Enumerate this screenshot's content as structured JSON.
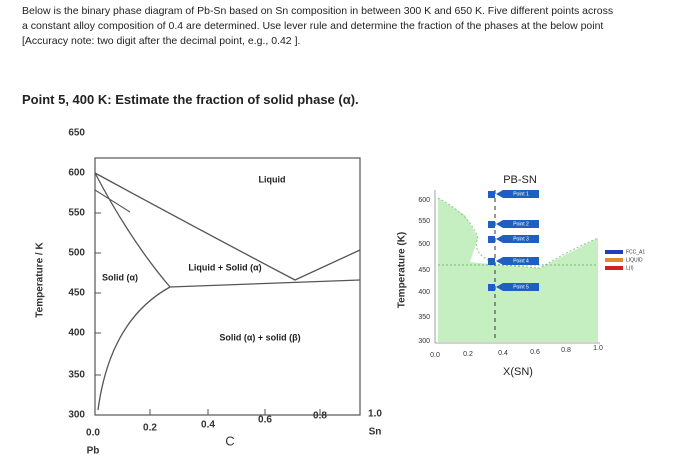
{
  "question": {
    "lines": [
      "Below is the binary phase diagram of Pb-Sn based on Sn composition in between 300 K and 650 K. Five different points across",
      "a constant alloy composition of 0.4 are determined. Use lever rule and determine the fraction of the phases at the below point",
      "[Accuracy note: two digit after the decimal point, e.g., 0.42 ]."
    ],
    "prompt": "Point 5, 400 K: Estimate the fraction of solid phase (α)."
  },
  "left_diagram": {
    "y_label": "Temperature / K",
    "y_ticks": [
      "650",
      "600",
      "550",
      "500",
      "450",
      "400",
      "350",
      "300"
    ],
    "x_ticks": [
      "0.0",
      "0.2",
      "0.4",
      "0.6",
      "0.8",
      "1.0"
    ],
    "x_end_labels": [
      "Pb",
      "Sn"
    ],
    "x_label": "C",
    "regions": [
      "Liquid",
      "Solid (α)",
      "Liquid + Solid (α)",
      "Solid (α) + solid (β)"
    ]
  },
  "right_diagram": {
    "title": "PB-SN",
    "y_label": "Temperature (K)",
    "y_ticks": [
      "600",
      "550",
      "500",
      "450",
      "400",
      "350",
      "300"
    ],
    "x_ticks": [
      "0.0",
      "0.2",
      "0.4",
      "0.6",
      "0.8",
      "1.0"
    ],
    "x_label": "X(SN)",
    "points": [
      "Point 1",
      "Point 2",
      "Point 3",
      "Point 4",
      "Point 5"
    ],
    "legend": [
      "FCC_A1",
      "LIQUID",
      "L(I)"
    ]
  }
}
